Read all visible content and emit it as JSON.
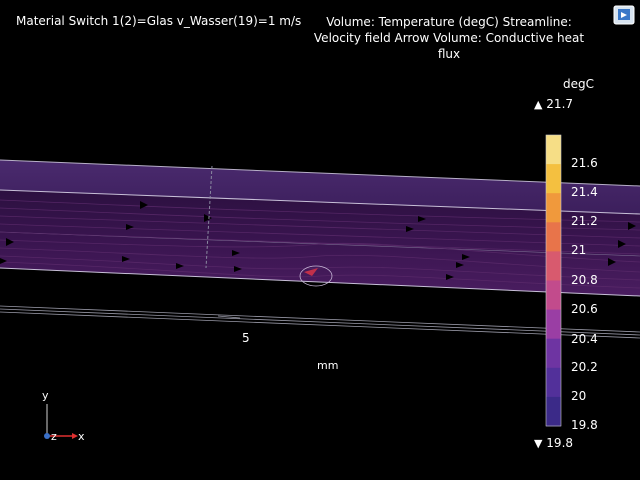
{
  "header": {
    "left_title": "Material Switch 1(2)=Glas v_Wasser(19)=1 m/s",
    "right_title": "Volume: Temperature (degC)  Streamline: Velocity field  Arrow Volume: Conductive heat flux"
  },
  "colorbar": {
    "unit": "degC",
    "max_label": "21.7",
    "min_label": "19.8",
    "ticks": [
      "21.6",
      "21.4",
      "21.2",
      "21",
      "20.8",
      "20.6",
      "20.4",
      "20.2",
      "20",
      "19.8"
    ],
    "colors": [
      "#f6de86",
      "#f4c040",
      "#f0993c",
      "#e8744a",
      "#d85a6e",
      "#c24b8c",
      "#9a3ea4",
      "#6e34a2",
      "#52309a",
      "#3b2a88"
    ]
  },
  "axes": {
    "tick_label": "5",
    "unit_label": "mm",
    "triad": {
      "y": "y",
      "z": "z",
      "x": "x"
    }
  },
  "colors": {
    "background": "#000000",
    "channel": "#3a1a4e",
    "channel_edge": "#b8b0c8"
  }
}
